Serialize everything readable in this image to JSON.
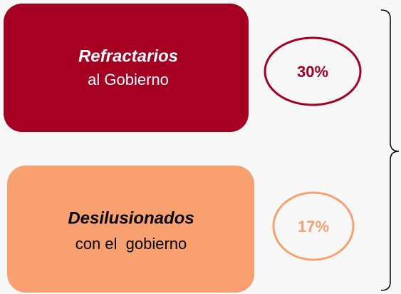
{
  "items": [
    {
      "title": "Refractarios",
      "subtitle": "al Gobierno",
      "value": "30%"
    },
    {
      "title": "Desilusionados",
      "subtitle": "con el  gobierno",
      "value": "17%"
    }
  ]
}
